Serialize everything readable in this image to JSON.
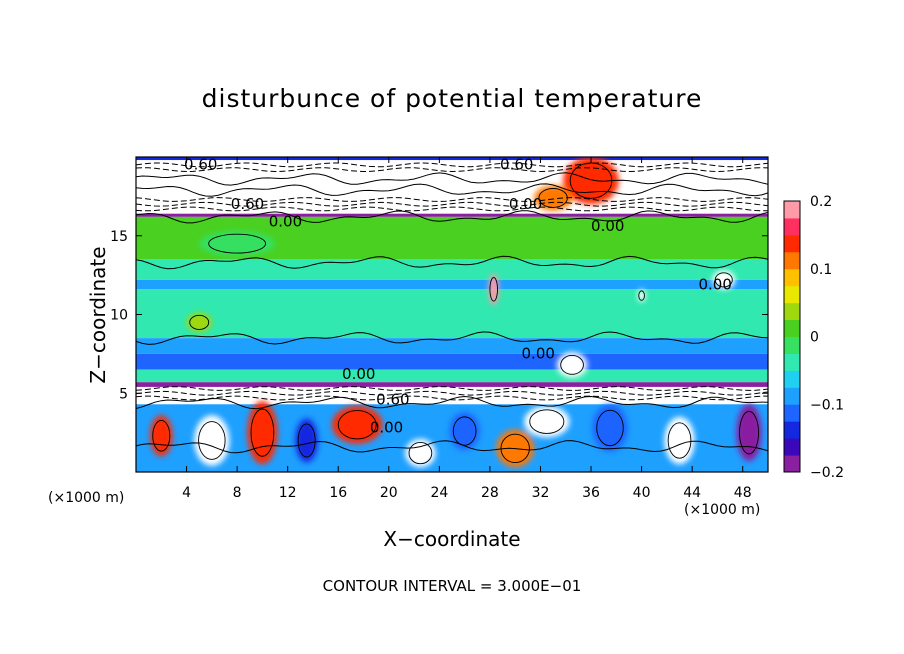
{
  "chart_data": {
    "type": "heatmap",
    "title": "disturbunce of potential temperature",
    "xlabel": "X−coordinate",
    "ylabel": "Z−coordinate",
    "x_unit": "(×1000 m)",
    "x_unit_right": "(×1000 m)",
    "xlim": [
      0,
      50
    ],
    "ylim": [
      0,
      20
    ],
    "x_ticks": [
      4,
      8,
      12,
      16,
      20,
      24,
      28,
      32,
      36,
      40,
      44,
      48
    ],
    "y_ticks": [
      5,
      10,
      15
    ],
    "colorbar": {
      "range": [
        -0.2,
        0.2
      ],
      "ticks": [
        0.2,
        0.1,
        0,
        -0.1,
        -0.2
      ],
      "tick_labels": [
        "0.2",
        "0.1",
        "0",
        "−0.1",
        "−0.2"
      ],
      "colors": [
        "#8a1fa0",
        "#3a08b8",
        "#1428e0",
        "#1e64ff",
        "#1ea0ff",
        "#20d0f0",
        "#30e8b0",
        "#36e060",
        "#4ad020",
        "#a0d810",
        "#e8e800",
        "#ffc000",
        "#ff7800",
        "#ff2a00",
        "#ff3060",
        "#ff9aa8"
      ]
    },
    "contour_labels": [
      "0.60",
      "0.60",
      "0.60",
      "0.00",
      "0.00",
      "0.00",
      "0.00",
      "0.00",
      "0.00",
      "0.60",
      "0.00"
    ],
    "contour_interval": "CONTOUR INTERVAL = 3.000E−01",
    "bands": [
      {
        "z0": 19.8,
        "z1": 20.0,
        "value": -0.15
      },
      {
        "z0": 17.2,
        "z1": 19.8,
        "value": 0.6
      },
      {
        "z0": 16.4,
        "z1": 17.2,
        "value": -0.4
      },
      {
        "z0": 16.2,
        "z1": 16.4,
        "value": -0.2
      },
      {
        "z0": 13.5,
        "z1": 16.2,
        "value": 0.0
      },
      {
        "z0": 12.2,
        "z1": 13.5,
        "value": -0.05
      },
      {
        "z0": 11.6,
        "z1": 12.2,
        "value": -0.1
      },
      {
        "z0": 8.5,
        "z1": 11.6,
        "value": -0.03
      },
      {
        "z0": 7.5,
        "z1": 8.5,
        "value": -0.1
      },
      {
        "z0": 6.5,
        "z1": 7.5,
        "value": -0.12
      },
      {
        "z0": 5.7,
        "z1": 6.5,
        "value": -0.05
      },
      {
        "z0": 5.4,
        "z1": 5.7,
        "value": -0.2
      },
      {
        "z0": 4.3,
        "z1": 5.4,
        "value": 0.5
      },
      {
        "z0": 0.0,
        "z1": 4.3,
        "value": -0.08
      }
    ],
    "blobs": [
      {
        "x": 6.0,
        "z": 2.0,
        "rx": 1.4,
        "rz": 1.6,
        "value": 0.3
      },
      {
        "x": 10.0,
        "z": 2.5,
        "rx": 1.2,
        "rz": 2.0,
        "value": 0.15
      },
      {
        "x": 17.5,
        "z": 3.0,
        "rx": 2.0,
        "rz": 1.2,
        "value": 0.15
      },
      {
        "x": 22.5,
        "z": 1.2,
        "rx": 1.2,
        "rz": 0.9,
        "value": 0.3
      },
      {
        "x": 30.0,
        "z": 1.5,
        "rx": 1.5,
        "rz": 1.2,
        "value": 0.12
      },
      {
        "x": 32.5,
        "z": 3.2,
        "rx": 1.8,
        "rz": 1.0,
        "value": 0.4
      },
      {
        "x": 37.5,
        "z": 2.8,
        "rx": 1.4,
        "rz": 1.5,
        "value": -0.12
      },
      {
        "x": 43.0,
        "z": 2.0,
        "rx": 1.2,
        "rz": 1.5,
        "value": 0.25
      },
      {
        "x": 48.5,
        "z": 2.5,
        "rx": 1.0,
        "rz": 1.8,
        "value": -0.2
      },
      {
        "x": 2.0,
        "z": 2.3,
        "rx": 0.9,
        "rz": 1.3,
        "value": 0.15
      },
      {
        "x": 13.5,
        "z": 2.0,
        "rx": 0.9,
        "rz": 1.4,
        "value": -0.15
      },
      {
        "x": 26.0,
        "z": 2.6,
        "rx": 1.2,
        "rz": 1.2,
        "value": -0.12
      },
      {
        "x": 34.5,
        "z": 6.8,
        "rx": 1.2,
        "rz": 0.8,
        "value": 0.4
      },
      {
        "x": 28.3,
        "z": 11.6,
        "rx": 0.4,
        "rz": 1.0,
        "value": 0.2
      },
      {
        "x": 40.0,
        "z": 11.2,
        "rx": 0.3,
        "rz": 0.4,
        "value": 0.4
      },
      {
        "x": 46.5,
        "z": 12.2,
        "rx": 0.9,
        "rz": 0.6,
        "value": 0.25
      },
      {
        "x": 36.0,
        "z": 18.5,
        "rx": 2.2,
        "rz": 1.5,
        "value": 0.15
      },
      {
        "x": 33.0,
        "z": 17.4,
        "rx": 1.5,
        "rz": 0.8,
        "value": 0.12
      },
      {
        "x": 5.0,
        "z": 9.5,
        "rx": 1.0,
        "rz": 0.6,
        "value": 0.03
      },
      {
        "x": 8.0,
        "z": 14.5,
        "rx": 3.0,
        "rz": 0.8,
        "value": -0.02
      }
    ]
  }
}
